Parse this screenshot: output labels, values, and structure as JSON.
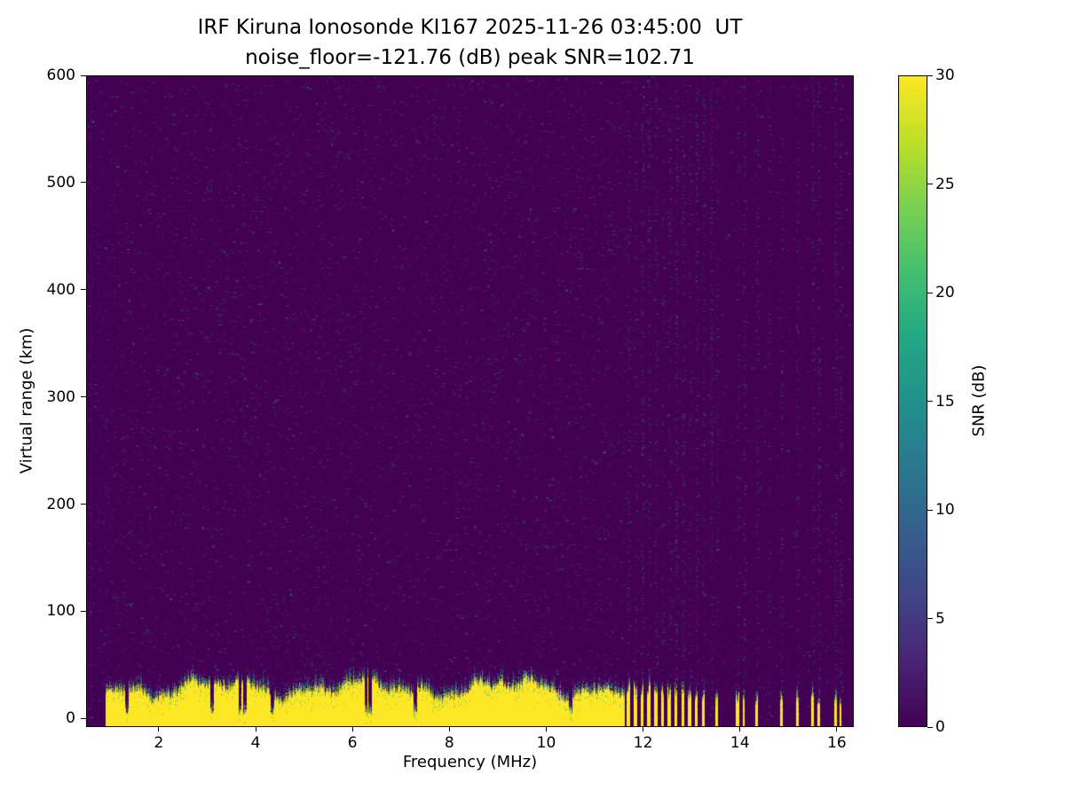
{
  "figure": {
    "background": "#ffffff"
  },
  "chart_data": {
    "type": "heatmap",
    "title": "IRF Kiruna Ionosonde KI167 2025-11-26 03:45:00  UT",
    "subtitle": "noise_floor=-121.76 (dB) peak SNR=102.71",
    "xlabel": "Frequency (MHz)",
    "ylabel": "Virtual range (km)",
    "xlim": [
      0.5,
      16.35
    ],
    "ylim": [
      -8,
      600
    ],
    "x_ticks": [
      2,
      4,
      6,
      8,
      10,
      12,
      14,
      16
    ],
    "y_ticks": [
      0,
      100,
      200,
      300,
      400,
      500,
      600
    ],
    "grid": false,
    "noise_floor_db": -121.76,
    "peak_snr_db": 102.71,
    "background_color": "#440154",
    "peak_color": "#fde725",
    "colorbar": {
      "label": "SNR (dB)",
      "ticks": [
        0,
        5,
        10,
        15,
        20,
        25,
        30
      ],
      "clim": [
        0,
        30
      ],
      "colormap": "viridis",
      "stops": [
        [
          0,
          "#440154"
        ],
        [
          0.1,
          "#482475"
        ],
        [
          0.2,
          "#414487"
        ],
        [
          0.3,
          "#355f8d"
        ],
        [
          0.4,
          "#2a788e"
        ],
        [
          0.5,
          "#21918c"
        ],
        [
          0.6,
          "#22a884"
        ],
        [
          0.7,
          "#44bf70"
        ],
        [
          0.8,
          "#7ad151"
        ],
        [
          0.9,
          "#bddf26"
        ],
        [
          1,
          "#fde725"
        ]
      ]
    },
    "ground_echo": {
      "freq_start_mhz": 0.9,
      "continuous_until_mhz": 11.62,
      "top_km_base": 27,
      "top_km_variation": 10,
      "fringe_km": 13,
      "notch_freqs_mhz": [
        1.35,
        3.1,
        3.68,
        3.78,
        4.35,
        6.28,
        6.36,
        7.3,
        10.5
      ],
      "notch_width_mhz": 0.07
    },
    "stripes": [
      {
        "f": 11.7,
        "w": 0.07,
        "h": 28
      },
      {
        "f": 11.84,
        "w": 0.07,
        "h": 26
      },
      {
        "f": 11.98,
        "w": 0.07,
        "h": 27
      },
      {
        "f": 12.12,
        "w": 0.07,
        "h": 25
      },
      {
        "f": 12.26,
        "w": 0.07,
        "h": 26
      },
      {
        "f": 12.4,
        "w": 0.07,
        "h": 24
      },
      {
        "f": 12.54,
        "w": 0.07,
        "h": 25
      },
      {
        "f": 12.68,
        "w": 0.06,
        "h": 24
      },
      {
        "f": 12.82,
        "w": 0.06,
        "h": 23
      },
      {
        "f": 12.96,
        "w": 0.06,
        "h": 24
      },
      {
        "f": 13.1,
        "w": 0.06,
        "h": 22
      },
      {
        "f": 13.24,
        "w": 0.05,
        "h": 20
      },
      {
        "f": 13.52,
        "w": 0.05,
        "h": 16
      },
      {
        "f": 13.95,
        "w": 0.06,
        "h": 20
      },
      {
        "f": 14.08,
        "w": 0.05,
        "h": 16
      },
      {
        "f": 14.35,
        "w": 0.05,
        "h": 17
      },
      {
        "f": 14.85,
        "w": 0.06,
        "h": 18
      },
      {
        "f": 15.18,
        "w": 0.05,
        "h": 16
      },
      {
        "f": 15.5,
        "w": 0.06,
        "h": 18
      },
      {
        "f": 15.62,
        "w": 0.05,
        "h": 14
      },
      {
        "f": 15.97,
        "w": 0.06,
        "h": 18
      },
      {
        "f": 16.08,
        "w": 0.04,
        "h": 12
      }
    ],
    "noise_streak_freqs_mhz": [
      11.7,
      11.84,
      11.98,
      12.12,
      12.26,
      12.4,
      12.54,
      12.68,
      12.82,
      12.96,
      13.1,
      13.24,
      13.4,
      13.52,
      13.95,
      14.08,
      14.35,
      14.6,
      14.85,
      15.18,
      15.5,
      15.62,
      15.97,
      16.08
    ]
  }
}
